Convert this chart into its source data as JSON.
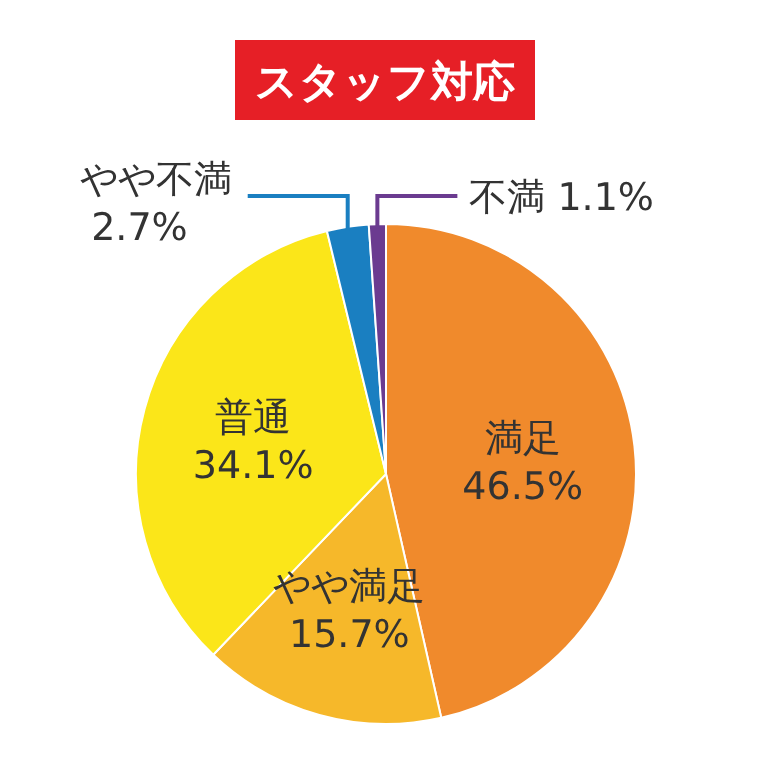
{
  "chart_data": {
    "type": "pie",
    "title": "スタッフ対応",
    "categories": [
      "満足",
      "やや満足",
      "普通",
      "やや不満",
      "不満"
    ],
    "values": [
      46.5,
      15.7,
      34.1,
      2.7,
      1.1
    ],
    "value_labels": [
      "46.5%",
      "15.7%",
      "34.1%",
      "2.7%",
      "1.1%"
    ],
    "colors": [
      "#f08a2c",
      "#f6b82a",
      "#fbe619",
      "#1a7fc1",
      "#6b3b90"
    ]
  }
}
